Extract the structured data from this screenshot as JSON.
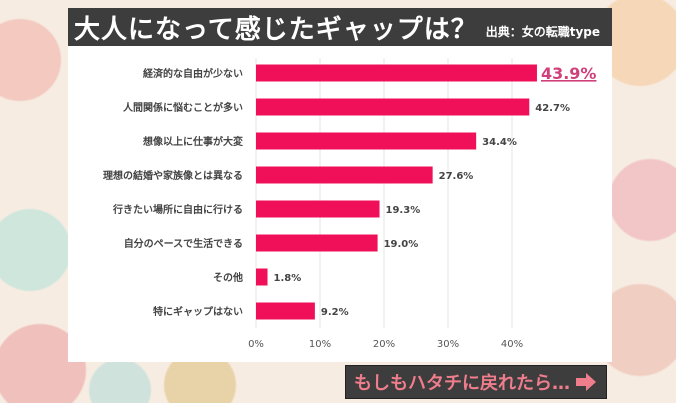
{
  "title": "大人になって感じたギャップは？",
  "source": "出典：女の転職type",
  "banner": {
    "text": "もしもハタチに戻れたら…",
    "arrow_icon": "right-arrow-icon"
  },
  "colors": {
    "bar": "#f0105a",
    "highlight_label": "#d0407a",
    "title_bg": "#3d3d3d"
  },
  "chart_data": {
    "type": "bar",
    "orientation": "horizontal",
    "categories": [
      "経済的な自由が少ない",
      "人間関係に悩むことが多い",
      "想像以上に仕事が大変",
      "理想の結婚や家族像とは異なる",
      "行きたい場所に自由に行ける",
      "自分のペースで生活できる",
      "その他",
      "特にギャップはない"
    ],
    "values": [
      43.9,
      42.7,
      34.4,
      27.6,
      19.3,
      19.0,
      1.8,
      9.2
    ],
    "data_labels": [
      "43.9%",
      "42.7%",
      "34.4%",
      "27.6%",
      "19.3%",
      "19.0%",
      "1.8%",
      "9.2%"
    ],
    "xlim": [
      0,
      45
    ],
    "xticks": [
      0,
      10,
      20,
      30,
      40
    ],
    "xtick_labels": [
      "0%",
      "10%",
      "20%",
      "30%",
      "40%"
    ],
    "grid": true,
    "highlight_index": 0
  }
}
